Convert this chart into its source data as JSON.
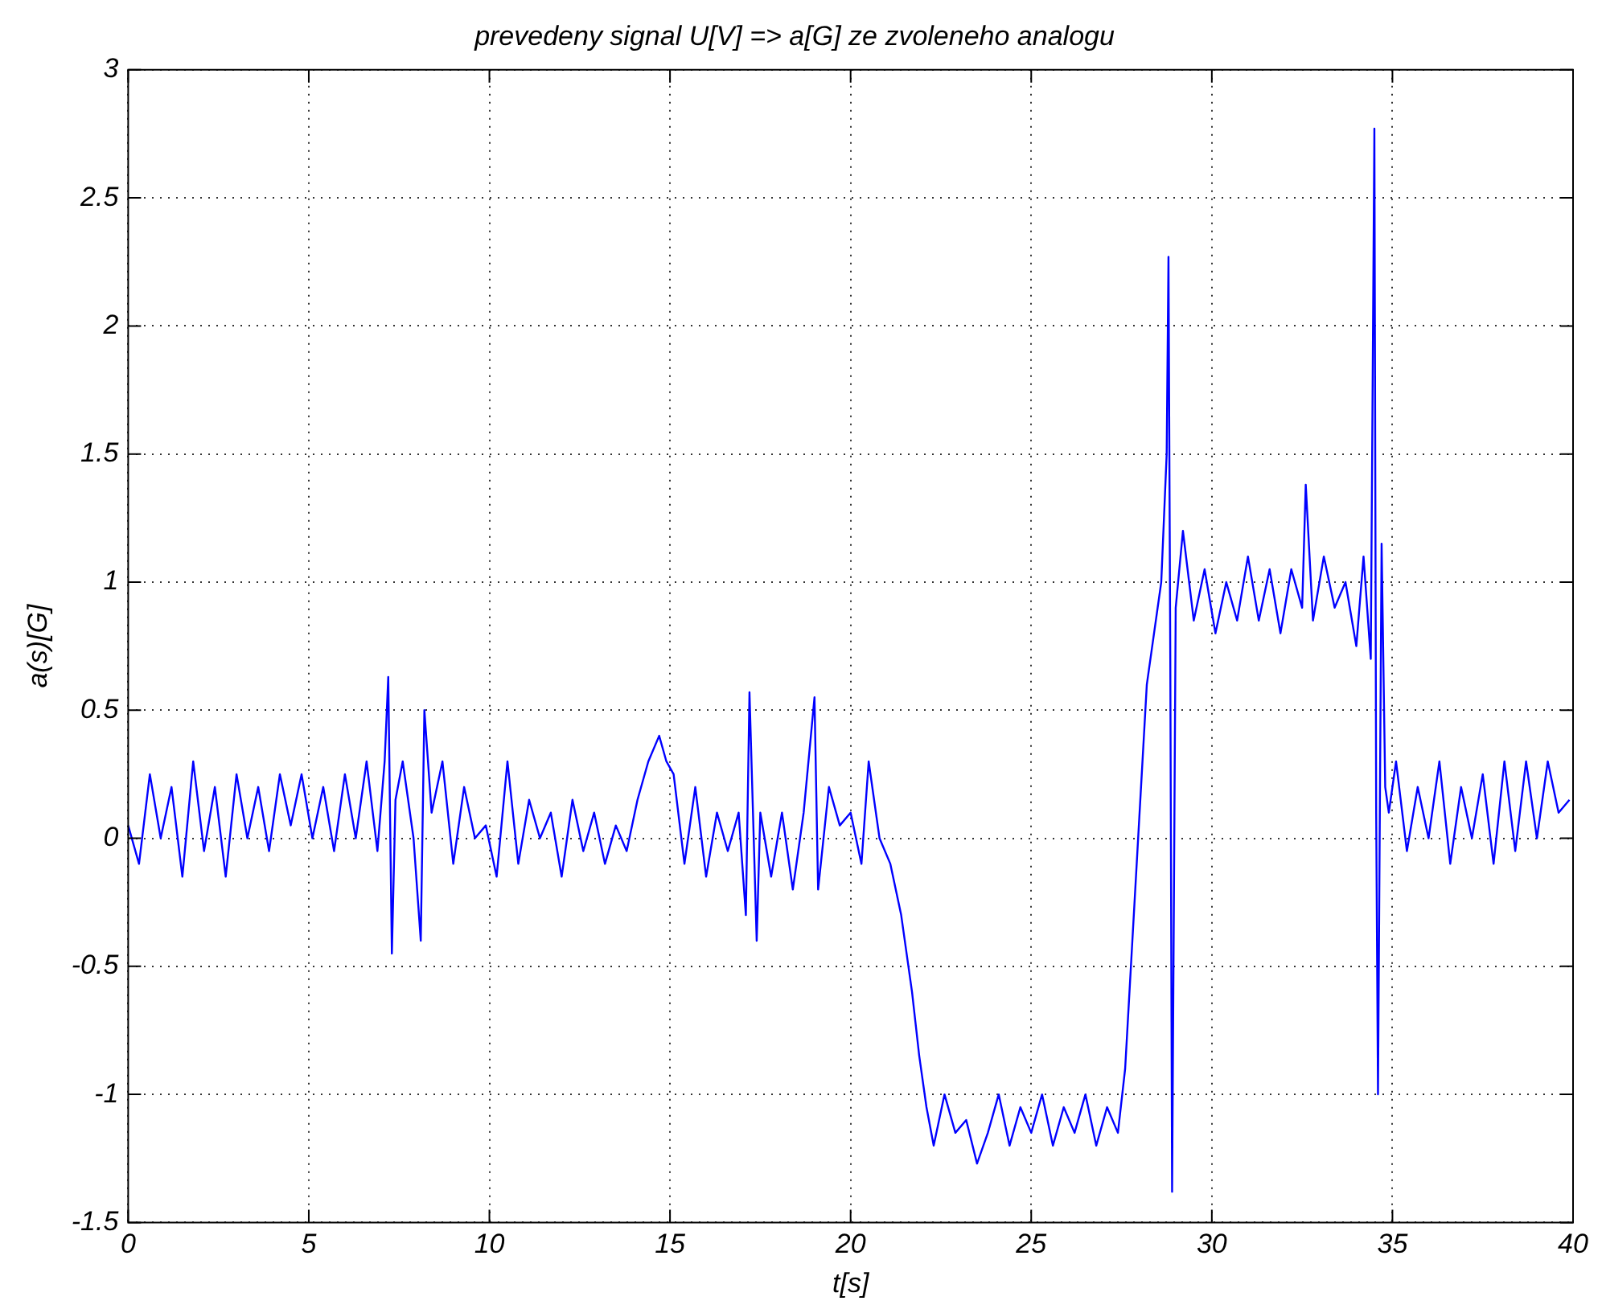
{
  "chart_data": {
    "type": "line",
    "title": "prevedeny signal U[V] => a[G] ze zvoleneho analogu",
    "xlabel": "t[s]",
    "ylabel": "a(s)[G]",
    "xlim": [
      0,
      40
    ],
    "xticks": [
      0,
      5,
      10,
      15,
      20,
      25,
      30,
      35,
      40
    ],
    "ylim": [
      -1.5,
      3
    ],
    "yticks": [
      -1.5,
      -1,
      -0.5,
      0,
      0.5,
      1,
      1.5,
      2,
      2.5,
      3
    ],
    "grid": true,
    "legend": false,
    "marker": "none",
    "line_style": "solid",
    "series": [
      {
        "color": "#0000ff",
        "x": [
          0,
          0.3,
          0.6,
          0.9,
          1.2,
          1.5,
          1.8,
          2.1,
          2.4,
          2.7,
          3,
          3.3,
          3.6,
          3.9,
          4.2,
          4.5,
          4.8,
          5.1,
          5.4,
          5.7,
          6,
          6.3,
          6.6,
          6.9,
          7.1,
          7.2,
          7.3,
          7.4,
          7.6,
          7.9,
          8.1,
          8.2,
          8.4,
          8.7,
          9,
          9.3,
          9.6,
          9.9,
          10.2,
          10.5,
          10.8,
          11.1,
          11.4,
          11.7,
          12,
          12.3,
          12.6,
          12.9,
          13.2,
          13.5,
          13.8,
          14.1,
          14.4,
          14.7,
          14.9,
          15.1,
          15.4,
          15.7,
          16,
          16.3,
          16.6,
          16.9,
          17.1,
          17.2,
          17.4,
          17.5,
          17.8,
          18.1,
          18.4,
          18.7,
          19,
          19.1,
          19.4,
          19.7,
          20,
          20.3,
          20.5,
          20.8,
          21.1,
          21.4,
          21.7,
          21.9,
          22.1,
          22.3,
          22.6,
          22.9,
          23.2,
          23.5,
          23.8,
          24.1,
          24.4,
          24.7,
          25,
          25.3,
          25.6,
          25.9,
          26.2,
          26.5,
          26.8,
          27.1,
          27.4,
          27.6,
          27.8,
          28,
          28.2,
          28.4,
          28.6,
          28.75,
          28.8,
          28.85,
          28.9,
          29,
          29.2,
          29.5,
          29.8,
          30.1,
          30.4,
          30.7,
          31,
          31.3,
          31.6,
          31.9,
          32.2,
          32.5,
          32.6,
          32.8,
          33.1,
          33.4,
          33.7,
          34,
          34.2,
          34.4,
          34.5,
          34.55,
          34.6,
          34.7,
          34.8,
          34.9,
          35.1,
          35.4,
          35.7,
          36,
          36.3,
          36.6,
          36.9,
          37.2,
          37.5,
          37.8,
          38.1,
          38.4,
          38.7,
          39,
          39.3,
          39.6,
          39.9
        ],
        "values": [
          0.05,
          -0.1,
          0.25,
          0,
          0.2,
          -0.15,
          0.3,
          -0.05,
          0.2,
          -0.15,
          0.25,
          0,
          0.2,
          -0.05,
          0.25,
          0.05,
          0.25,
          0,
          0.2,
          -0.05,
          0.25,
          0,
          0.3,
          -0.05,
          0.3,
          0.63,
          -0.45,
          0.15,
          0.3,
          0,
          -0.4,
          0.5,
          0.1,
          0.3,
          -0.1,
          0.2,
          0,
          0.05,
          -0.15,
          0.3,
          -0.1,
          0.15,
          0,
          0.1,
          -0.15,
          0.15,
          -0.05,
          0.1,
          -0.1,
          0.05,
          -0.05,
          0.15,
          0.3,
          0.4,
          0.3,
          0.25,
          -0.1,
          0.2,
          -0.15,
          0.1,
          -0.05,
          0.1,
          -0.3,
          0.57,
          -0.4,
          0.1,
          -0.15,
          0.1,
          -0.2,
          0.1,
          0.55,
          -0.2,
          0.2,
          0.05,
          0.1,
          -0.1,
          0.3,
          0,
          -0.1,
          -0.3,
          -0.6,
          -0.85,
          -1.05,
          -1.2,
          -1.0,
          -1.15,
          -1.1,
          -1.27,
          -1.15,
          -1.0,
          -1.2,
          -1.05,
          -1.15,
          -1.0,
          -1.2,
          -1.05,
          -1.15,
          -1.0,
          -1.2,
          -1.05,
          -1.15,
          -0.9,
          -0.4,
          0.1,
          0.6,
          0.8,
          1.0,
          1.5,
          2.27,
          0.7,
          -1.38,
          0.9,
          1.2,
          0.85,
          1.05,
          0.8,
          1.0,
          0.85,
          1.1,
          0.85,
          1.05,
          0.8,
          1.05,
          0.9,
          1.38,
          0.85,
          1.1,
          0.9,
          1.0,
          0.75,
          1.1,
          0.7,
          2.77,
          0.1,
          -1.0,
          1.15,
          0.2,
          0.1,
          0.3,
          -0.05,
          0.2,
          0,
          0.3,
          -0.1,
          0.2,
          0,
          0.25,
          -0.1,
          0.3,
          -0.05,
          0.3,
          0,
          0.3,
          0.1,
          0.15
        ]
      }
    ]
  }
}
